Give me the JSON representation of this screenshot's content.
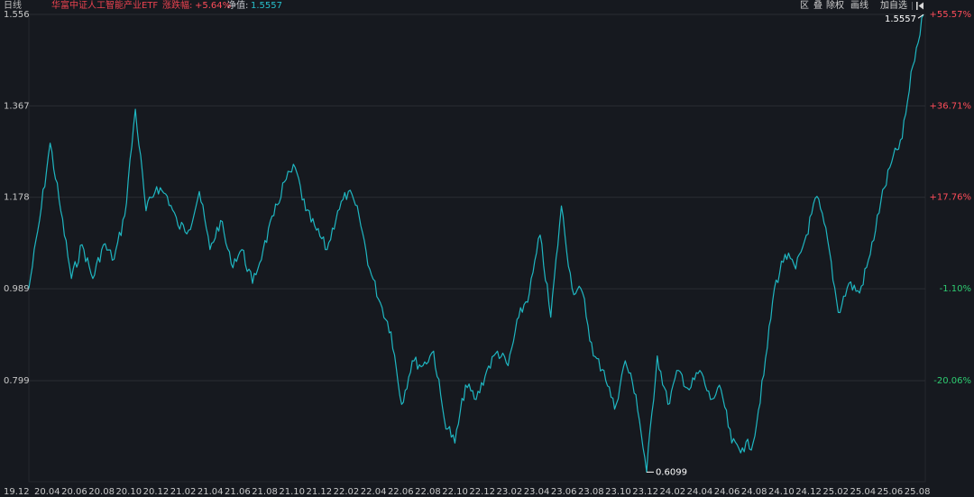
{
  "header": {
    "period": "日线",
    "fund_name": "华富中证人工智能产业ETF",
    "change_label": "涨跌幅:",
    "change_value": "+5.64%",
    "nav_label": "净值:",
    "nav_value": "1.5557"
  },
  "toolbar": {
    "items": [
      "区",
      "叠",
      "除权",
      "画线",
      "加自选"
    ],
    "end_icon": "jump-to-end-icon"
  },
  "colors": {
    "background": "#16191f",
    "line": "#1fb6c1",
    "grid": "#2a2d33",
    "positive": "#ff4d5a",
    "negative": "#2ecc71",
    "axis_text": "#c8c8c8"
  },
  "chart_data": {
    "type": "line",
    "title": "",
    "xlabel": "",
    "ylabel": "",
    "y_ticks": [
      "1.556",
      "1.367",
      "1.178",
      "0.989",
      "0.799"
    ],
    "y_tick_values": [
      1.556,
      1.367,
      1.178,
      0.989,
      0.799
    ],
    "pct_ticks": [
      "+55.57%",
      "+36.71%",
      "+17.76%",
      "-1.10%",
      "-20.06%"
    ],
    "x_ticks": [
      "19.12",
      "20.04",
      "20.06",
      "20.08",
      "20.10",
      "20.12",
      "21.02",
      "21.04",
      "21.06",
      "21.08",
      "21.10",
      "21.12",
      "22.02",
      "22.04",
      "22.06",
      "22.08",
      "22.10",
      "22.12",
      "23.02",
      "23.04",
      "23.06",
      "23.08",
      "23.10",
      "23.12",
      "24.02",
      "24.04",
      "24.06",
      "24.08",
      "24.10",
      "24.12",
      "25.02",
      "25.04",
      "25.06",
      "25.08"
    ],
    "ylim": [
      0.6,
      1.556
    ],
    "grid": true,
    "annotations": [
      {
        "label": "1.5557",
        "at": "latest"
      },
      {
        "label": "0.6099",
        "at": "minimum"
      }
    ],
    "x": [
      "19.12",
      "20.01",
      "20.02",
      "20.02",
      "20.03",
      "20.03",
      "20.04",
      "20.05",
      "20.06",
      "20.07",
      "20.08",
      "20.08",
      "20.09",
      "20.10",
      "20.11",
      "20.11",
      "20.12",
      "21.01",
      "21.02",
      "21.03",
      "21.04",
      "21.04",
      "21.05",
      "21.06",
      "21.07",
      "21.08",
      "21.08",
      "21.09",
      "21.10",
      "21.11",
      "21.12",
      "21.12",
      "22.02",
      "22.03",
      "22.04",
      "22.05",
      "22.06",
      "22.07",
      "22.08",
      "22.09",
      "22.10",
      "22.11",
      "22.12",
      "23.01",
      "23.02",
      "23.03",
      "23.04",
      "23.05",
      "23.06",
      "23.06",
      "23.07",
      "23.07",
      "23.08",
      "23.09",
      "23.10",
      "23.11",
      "23.12",
      "24.01",
      "24.02",
      "24.02",
      "24.03",
      "24.04",
      "24.05",
      "24.06",
      "24.07",
      "24.08",
      "24.09",
      "24.09",
      "24.10",
      "24.10",
      "24.11",
      "24.12",
      "25.01",
      "25.02",
      "25.03",
      "25.03",
      "25.04",
      "25.04",
      "25.05",
      "25.06",
      "25.07",
      "25.08",
      "25.08",
      "25.09",
      "25.09"
    ],
    "values": [
      0.99,
      1.13,
      1.29,
      1.15,
      1.01,
      1.08,
      1.01,
      1.08,
      1.05,
      1.14,
      1.36,
      1.15,
      1.2,
      1.18,
      1.12,
      1.11,
      1.19,
      1.07,
      1.13,
      1.04,
      1.07,
      1.0,
      1.07,
      1.14,
      1.21,
      1.24,
      1.15,
      1.11,
      1.07,
      1.15,
      1.19,
      1.14,
      1.03,
      0.96,
      0.9,
      0.75,
      0.84,
      0.83,
      0.86,
      0.72,
      0.67,
      0.79,
      0.76,
      0.82,
      0.86,
      0.83,
      0.93,
      0.98,
      1.1,
      0.93,
      1.16,
      0.99,
      0.98,
      0.85,
      0.82,
      0.74,
      0.84,
      0.77,
      0.61,
      0.85,
      0.75,
      0.82,
      0.78,
      0.82,
      0.76,
      0.78,
      0.67,
      0.66,
      0.67,
      0.81,
      0.99,
      1.06,
      1.03,
      1.1,
      1.18,
      1.09,
      0.94,
      1.0,
      0.98,
      1.06,
      1.17,
      1.25,
      1.3,
      1.45,
      1.5557
    ]
  }
}
